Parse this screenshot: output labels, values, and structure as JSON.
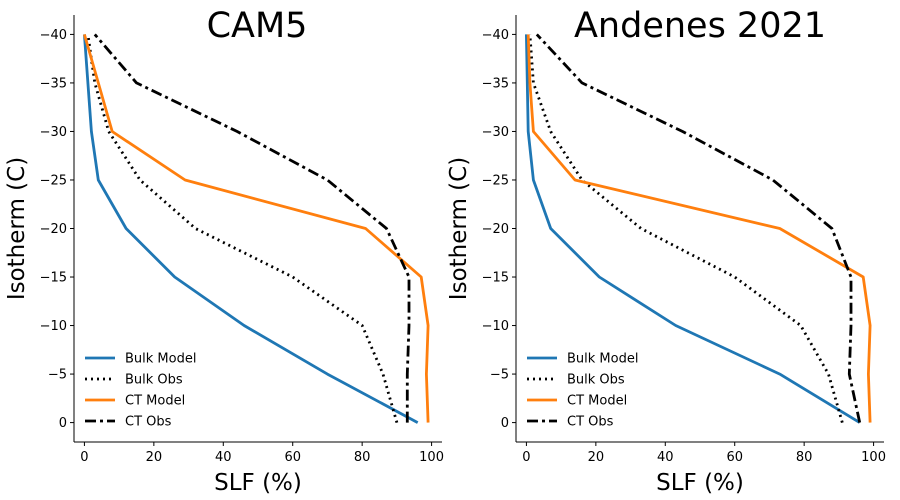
{
  "chart_data": [
    {
      "type": "line",
      "title": "CAM5",
      "xlabel": "SLF (%)",
      "ylabel": "Isotherm (C)",
      "xlim": [
        -3,
        103
      ],
      "ylim": [
        2,
        -42
      ],
      "xticks": [
        0,
        20,
        40,
        60,
        80,
        100
      ],
      "yticks": [
        0,
        -5,
        -10,
        -15,
        -20,
        -25,
        -30,
        -35,
        -40
      ],
      "ytick_labels": [
        "0",
        "−5",
        "−10",
        "−15",
        "−20",
        "−25",
        "−30",
        "−35",
        "−40"
      ],
      "legend_position": "lower-left",
      "grid": false,
      "series": [
        {
          "name": "Bulk Model",
          "style": "solid",
          "color": "#1f77b4",
          "x": [
            96,
            70,
            46,
            26,
            12,
            4,
            2,
            0
          ],
          "y": [
            0,
            -5,
            -10,
            -15,
            -20,
            -25,
            -30,
            -40
          ]
        },
        {
          "name": "Bulk Obs",
          "style": "dotted",
          "color": "#000000",
          "x": [
            90,
            86,
            80,
            60,
            32,
            16,
            7,
            3,
            1
          ],
          "y": [
            0,
            -5,
            -10,
            -15,
            -20,
            -25,
            -30,
            -35,
            -40
          ]
        },
        {
          "name": "CT Model",
          "style": "solid",
          "color": "#ff7f0e",
          "x": [
            99,
            98.5,
            99,
            97,
            81,
            29,
            8,
            4,
            0
          ],
          "y": [
            0,
            -5,
            -10,
            -15,
            -20,
            -25,
            -30,
            -35,
            -40
          ]
        },
        {
          "name": "CT Obs",
          "style": "dashdot",
          "color": "#000000",
          "x": [
            93,
            93,
            93.5,
            93.5,
            87,
            70,
            44,
            15,
            3
          ],
          "y": [
            0,
            -5,
            -10,
            -15,
            -20,
            -25,
            -30,
            -35,
            -40
          ]
        }
      ]
    },
    {
      "type": "line",
      "title": "Andenes 2021",
      "xlabel": "SLF (%)",
      "ylabel": "Isotherm (C)",
      "xlim": [
        -3,
        103
      ],
      "ylim": [
        2,
        -42
      ],
      "xticks": [
        0,
        20,
        40,
        60,
        80,
        100
      ],
      "yticks": [
        0,
        -5,
        -10,
        -15,
        -20,
        -25,
        -30,
        -35,
        -40
      ],
      "ytick_labels": [
        "0",
        "−5",
        "−10",
        "−15",
        "−20",
        "−25",
        "−30",
        "−35",
        "−40"
      ],
      "legend_position": "lower-left",
      "grid": false,
      "series": [
        {
          "name": "Bulk Model",
          "style": "solid",
          "color": "#1f77b4",
          "x": [
            96,
            73,
            43,
            21,
            7,
            2,
            0.5,
            0
          ],
          "y": [
            0,
            -5,
            -10,
            -15,
            -20,
            -25,
            -30,
            -40
          ]
        },
        {
          "name": "Bulk Obs",
          "style": "dotted",
          "color": "#000000",
          "x": [
            91,
            87,
            79,
            60,
            33,
            16,
            7,
            2,
            1
          ],
          "y": [
            0,
            -5,
            -10,
            -15,
            -20,
            -25,
            -30,
            -35,
            -40
          ]
        },
        {
          "name": "CT Model",
          "style": "solid",
          "color": "#ff7f0e",
          "x": [
            99,
            98.5,
            99,
            97,
            73,
            14,
            2,
            1,
            0.5
          ],
          "y": [
            0,
            -5,
            -10,
            -15,
            -20,
            -25,
            -30,
            -35,
            -40
          ]
        },
        {
          "name": "CT Obs",
          "style": "dashdot",
          "color": "#000000",
          "x": [
            96,
            93,
            93.5,
            93.5,
            88,
            71,
            45,
            16,
            3
          ],
          "y": [
            0,
            -5,
            -10,
            -15,
            -20,
            -25,
            -30,
            -35,
            -40
          ]
        }
      ]
    }
  ]
}
